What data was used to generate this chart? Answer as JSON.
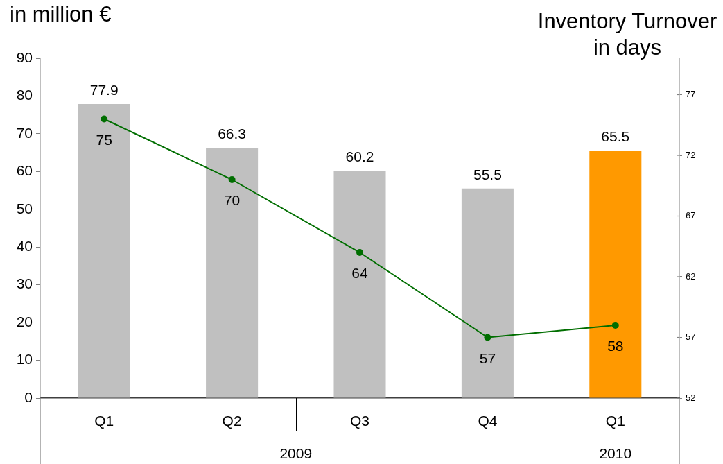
{
  "chart_data": {
    "type": "bar",
    "ylabel": "in million €",
    "y2label": "Inventory Turnover in days",
    "categories": [
      "Q1",
      "Q2",
      "Q3",
      "Q4",
      "Q1"
    ],
    "annotations": [
      "2009",
      "2010"
    ],
    "series": [
      {
        "colors": [
          "#c0c0c0",
          "#c0c0c0",
          "#c0c0c0",
          "#c0c0c0",
          "#ff9900"
        ],
        "values": [
          77.9,
          66.3,
          60.2,
          55.5,
          65.5
        ]
      },
      {
        "type": "line",
        "axis": "y2",
        "color": "#006e00",
        "values": [
          75,
          70,
          64,
          57,
          58
        ]
      }
    ],
    "ylim": [
      0,
      90
    ],
    "yticks": [
      0,
      10,
      20,
      30,
      40,
      50,
      60,
      70,
      80,
      90
    ],
    "y2lim": [
      52,
      80
    ],
    "y2ticks": [
      52,
      57,
      62,
      67,
      72,
      77
    ],
    "data_labels": true,
    "marker": "circle"
  }
}
